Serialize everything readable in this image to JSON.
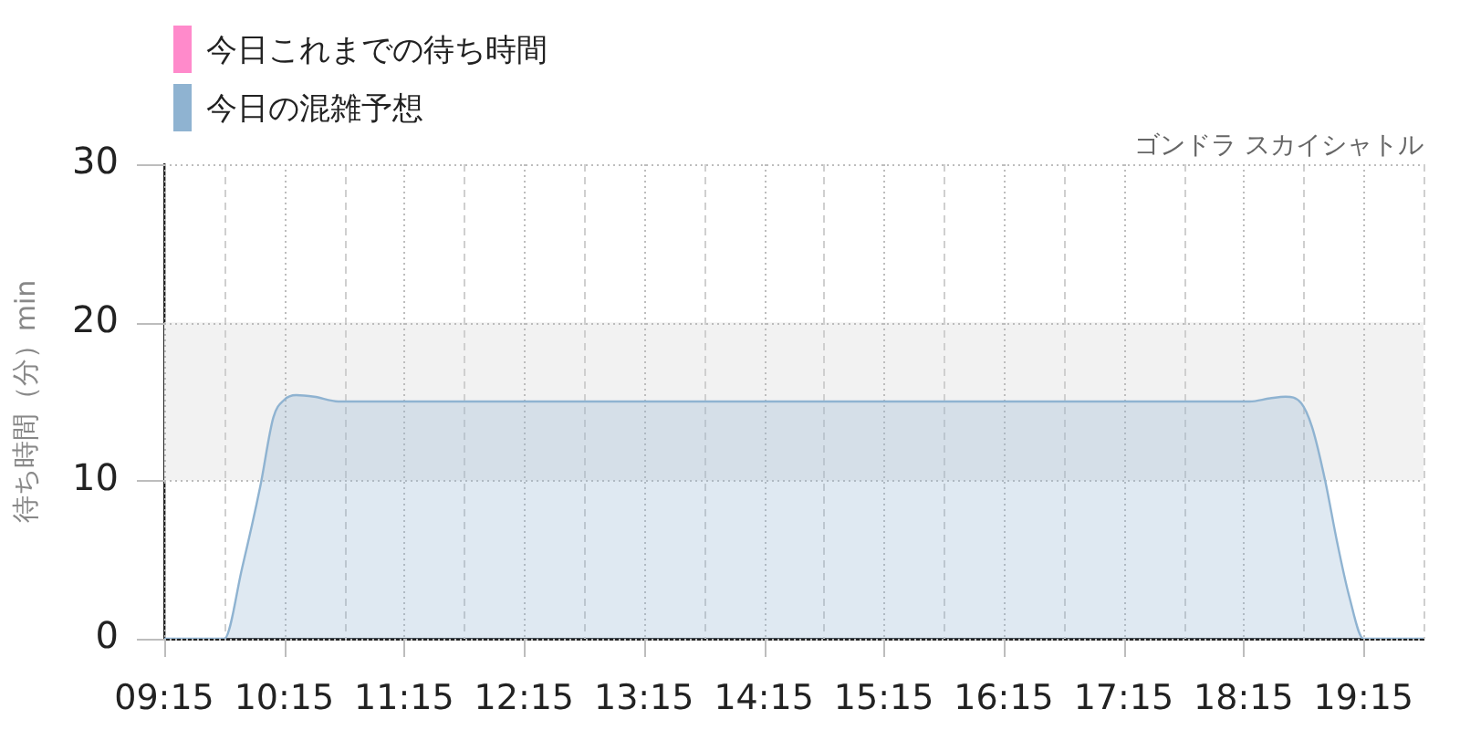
{
  "chart_data": {
    "type": "area",
    "title": "ゴンドラ スカイシャトル",
    "ylabel": "待ち時間（分）min",
    "x": [
      9.25,
      9.5,
      9.75,
      9.9,
      10.05,
      10.16,
      10.25,
      10.35,
      10.5,
      10.7,
      18.3,
      18.47,
      18.6,
      18.73,
      18.82,
      18.93,
      19.03,
      19.13,
      19.25,
      19.5,
      19.75
    ],
    "series": [
      {
        "name": "今日これまでの待ち時間",
        "color": "#ff8acb",
        "values": [
          null,
          null,
          null,
          null,
          null,
          null,
          null,
          null,
          null,
          null,
          null,
          null,
          null,
          null,
          null,
          null,
          null,
          null,
          null,
          null,
          null
        ]
      },
      {
        "name": "今日の混雑予想",
        "color": "#8fb3d1",
        "values": [
          0,
          0,
          0,
          4.5,
          9.6,
          14.0,
          15.1,
          15.4,
          15.3,
          15.0,
          15.0,
          15.2,
          15.3,
          14.9,
          13.4,
          10.0,
          6.1,
          2.7,
          0,
          0,
          0
        ]
      }
    ],
    "xlim": [
      9.25,
      19.75
    ],
    "xticks": [
      {
        "value": 9.25,
        "label": "09:15"
      },
      {
        "value": 9.75,
        "label": null
      },
      {
        "value": 10.25,
        "label": "10:15"
      },
      {
        "value": 10.75,
        "label": null
      },
      {
        "value": 11.25,
        "label": "11:15"
      },
      {
        "value": 11.75,
        "label": null
      },
      {
        "value": 12.25,
        "label": "12:15"
      },
      {
        "value": 12.75,
        "label": null
      },
      {
        "value": 13.25,
        "label": "13:15"
      },
      {
        "value": 13.75,
        "label": null
      },
      {
        "value": 14.25,
        "label": "14:15"
      },
      {
        "value": 14.75,
        "label": null
      },
      {
        "value": 15.25,
        "label": "15:15"
      },
      {
        "value": 15.75,
        "label": null
      },
      {
        "value": 16.25,
        "label": "16:15"
      },
      {
        "value": 16.75,
        "label": null
      },
      {
        "value": 17.25,
        "label": "17:15"
      },
      {
        "value": 17.75,
        "label": null
      },
      {
        "value": 18.25,
        "label": "18:15"
      },
      {
        "value": 18.75,
        "label": null
      },
      {
        "value": 19.25,
        "label": "19:15"
      },
      {
        "value": 19.75,
        "label": null
      }
    ],
    "ylim": [
      0,
      30
    ],
    "yticks": [
      0,
      10,
      20,
      30
    ],
    "bands": [
      {
        "axis": "y",
        "from": 10,
        "to": 20,
        "color": "#f2f2f2"
      }
    ],
    "grid": true,
    "legend": "top left",
    "marker": "none"
  }
}
